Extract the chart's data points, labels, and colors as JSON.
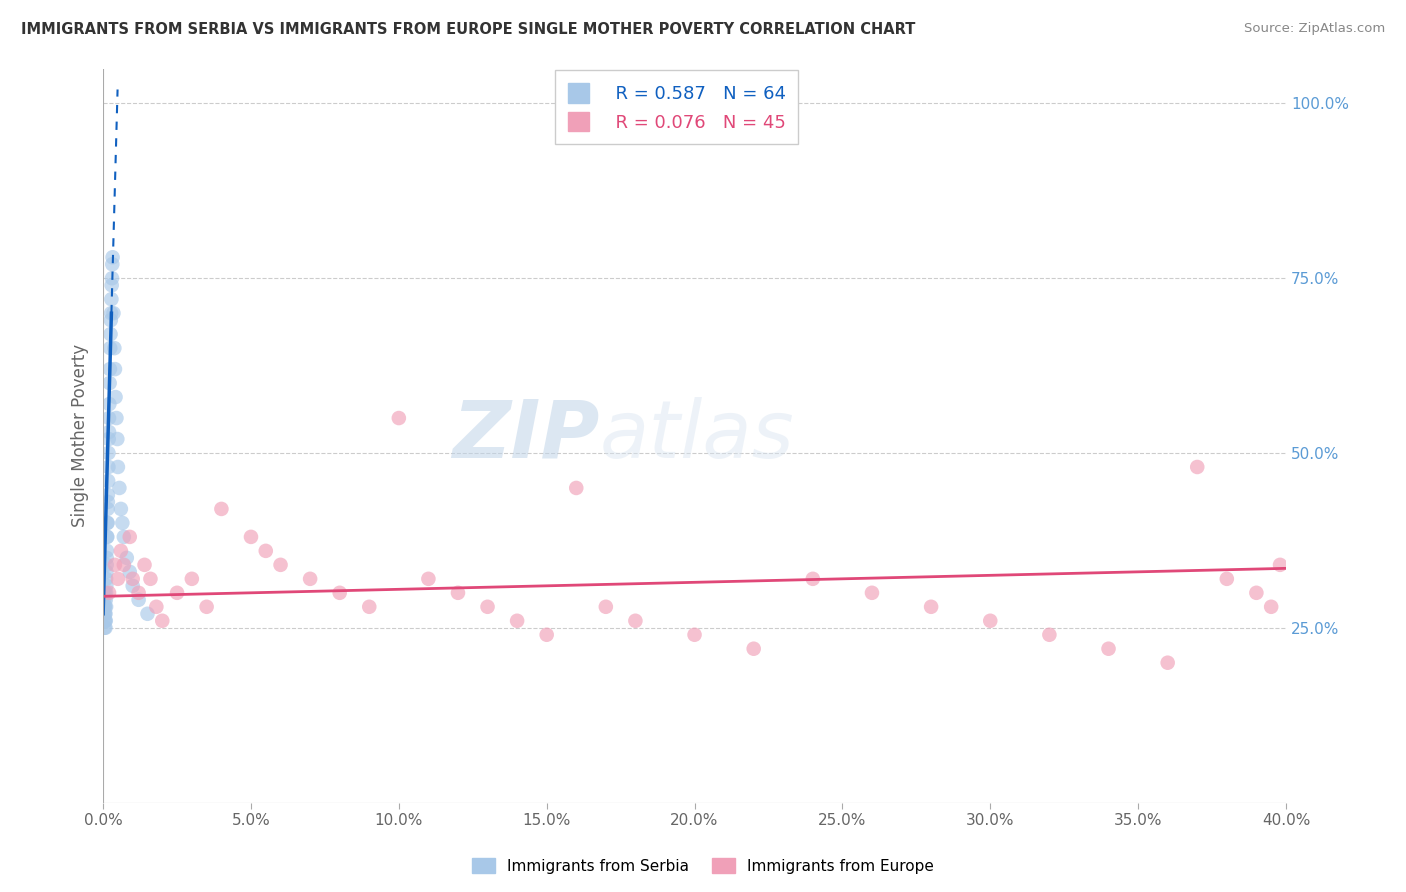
{
  "title": "IMMIGRANTS FROM SERBIA VS IMMIGRANTS FROM EUROPE SINGLE MOTHER POVERTY CORRELATION CHART",
  "source": "Source: ZipAtlas.com",
  "ylabel": "Single Mother Poverty",
  "legend_blue_r": "R = 0.587",
  "legend_blue_n": "N = 64",
  "legend_pink_r": "R = 0.076",
  "legend_pink_n": "N = 45",
  "legend_label_blue": "Immigrants from Serbia",
  "legend_label_pink": "Immigrants from Europe",
  "blue_color": "#a8c8e8",
  "blue_line_color": "#1060c0",
  "pink_color": "#f0a0b8",
  "pink_line_color": "#e04878",
  "watermark_zip": "ZIP",
  "watermark_atlas": "atlas",
  "background_color": "#ffffff",
  "serbia_x": [
    0.0002,
    0.0003,
    0.0004,
    0.0004,
    0.0005,
    0.0005,
    0.0005,
    0.0006,
    0.0006,
    0.0007,
    0.0007,
    0.0008,
    0.0008,
    0.0009,
    0.0009,
    0.001,
    0.001,
    0.001,
    0.0011,
    0.0011,
    0.0012,
    0.0012,
    0.0013,
    0.0013,
    0.0014,
    0.0014,
    0.0015,
    0.0015,
    0.0016,
    0.0016,
    0.0017,
    0.0018,
    0.0018,
    0.0019,
    0.002,
    0.002,
    0.0021,
    0.0022,
    0.0023,
    0.0024,
    0.0025,
    0.0026,
    0.0027,
    0.0028,
    0.0029,
    0.003,
    0.0031,
    0.0032,
    0.0035,
    0.0038,
    0.004,
    0.0042,
    0.0045,
    0.0048,
    0.005,
    0.0055,
    0.006,
    0.0065,
    0.007,
    0.008,
    0.009,
    0.01,
    0.012,
    0.015
  ],
  "serbia_y": [
    0.3,
    0.28,
    0.29,
    0.27,
    0.26,
    0.25,
    0.28,
    0.3,
    0.27,
    0.28,
    0.26,
    0.27,
    0.25,
    0.29,
    0.26,
    0.32,
    0.3,
    0.28,
    0.33,
    0.31,
    0.35,
    0.34,
    0.38,
    0.36,
    0.4,
    0.38,
    0.42,
    0.4,
    0.44,
    0.43,
    0.46,
    0.5,
    0.48,
    0.52,
    0.55,
    0.53,
    0.57,
    0.6,
    0.62,
    0.65,
    0.67,
    0.69,
    0.7,
    0.72,
    0.74,
    0.75,
    0.77,
    0.78,
    0.7,
    0.65,
    0.62,
    0.58,
    0.55,
    0.52,
    0.48,
    0.45,
    0.42,
    0.4,
    0.38,
    0.35,
    0.33,
    0.31,
    0.29,
    0.27
  ],
  "europe_x": [
    0.002,
    0.004,
    0.005,
    0.006,
    0.007,
    0.009,
    0.01,
    0.012,
    0.014,
    0.016,
    0.018,
    0.02,
    0.025,
    0.03,
    0.035,
    0.04,
    0.05,
    0.055,
    0.06,
    0.07,
    0.08,
    0.09,
    0.1,
    0.11,
    0.12,
    0.13,
    0.14,
    0.15,
    0.16,
    0.17,
    0.18,
    0.2,
    0.22,
    0.24,
    0.26,
    0.28,
    0.3,
    0.32,
    0.34,
    0.36,
    0.37,
    0.38,
    0.39,
    0.395,
    0.398
  ],
  "europe_y": [
    0.3,
    0.34,
    0.32,
    0.36,
    0.34,
    0.38,
    0.32,
    0.3,
    0.34,
    0.32,
    0.28,
    0.26,
    0.3,
    0.32,
    0.28,
    0.42,
    0.38,
    0.36,
    0.34,
    0.32,
    0.3,
    0.28,
    0.55,
    0.32,
    0.3,
    0.28,
    0.26,
    0.24,
    0.45,
    0.28,
    0.26,
    0.24,
    0.22,
    0.32,
    0.3,
    0.28,
    0.26,
    0.24,
    0.22,
    0.2,
    0.48,
    0.32,
    0.3,
    0.28,
    0.34
  ],
  "xlim": [
    0.0,
    0.4
  ],
  "ylim": [
    0.0,
    1.05
  ],
  "trend_blue_x0": 0.0,
  "trend_blue_y0": 0.27,
  "trend_blue_x1": 0.0028,
  "trend_blue_y1": 0.7,
  "trend_pink_x0": 0.0,
  "trend_pink_y0": 0.295,
  "trend_pink_x1": 0.4,
  "trend_pink_y1": 0.335
}
